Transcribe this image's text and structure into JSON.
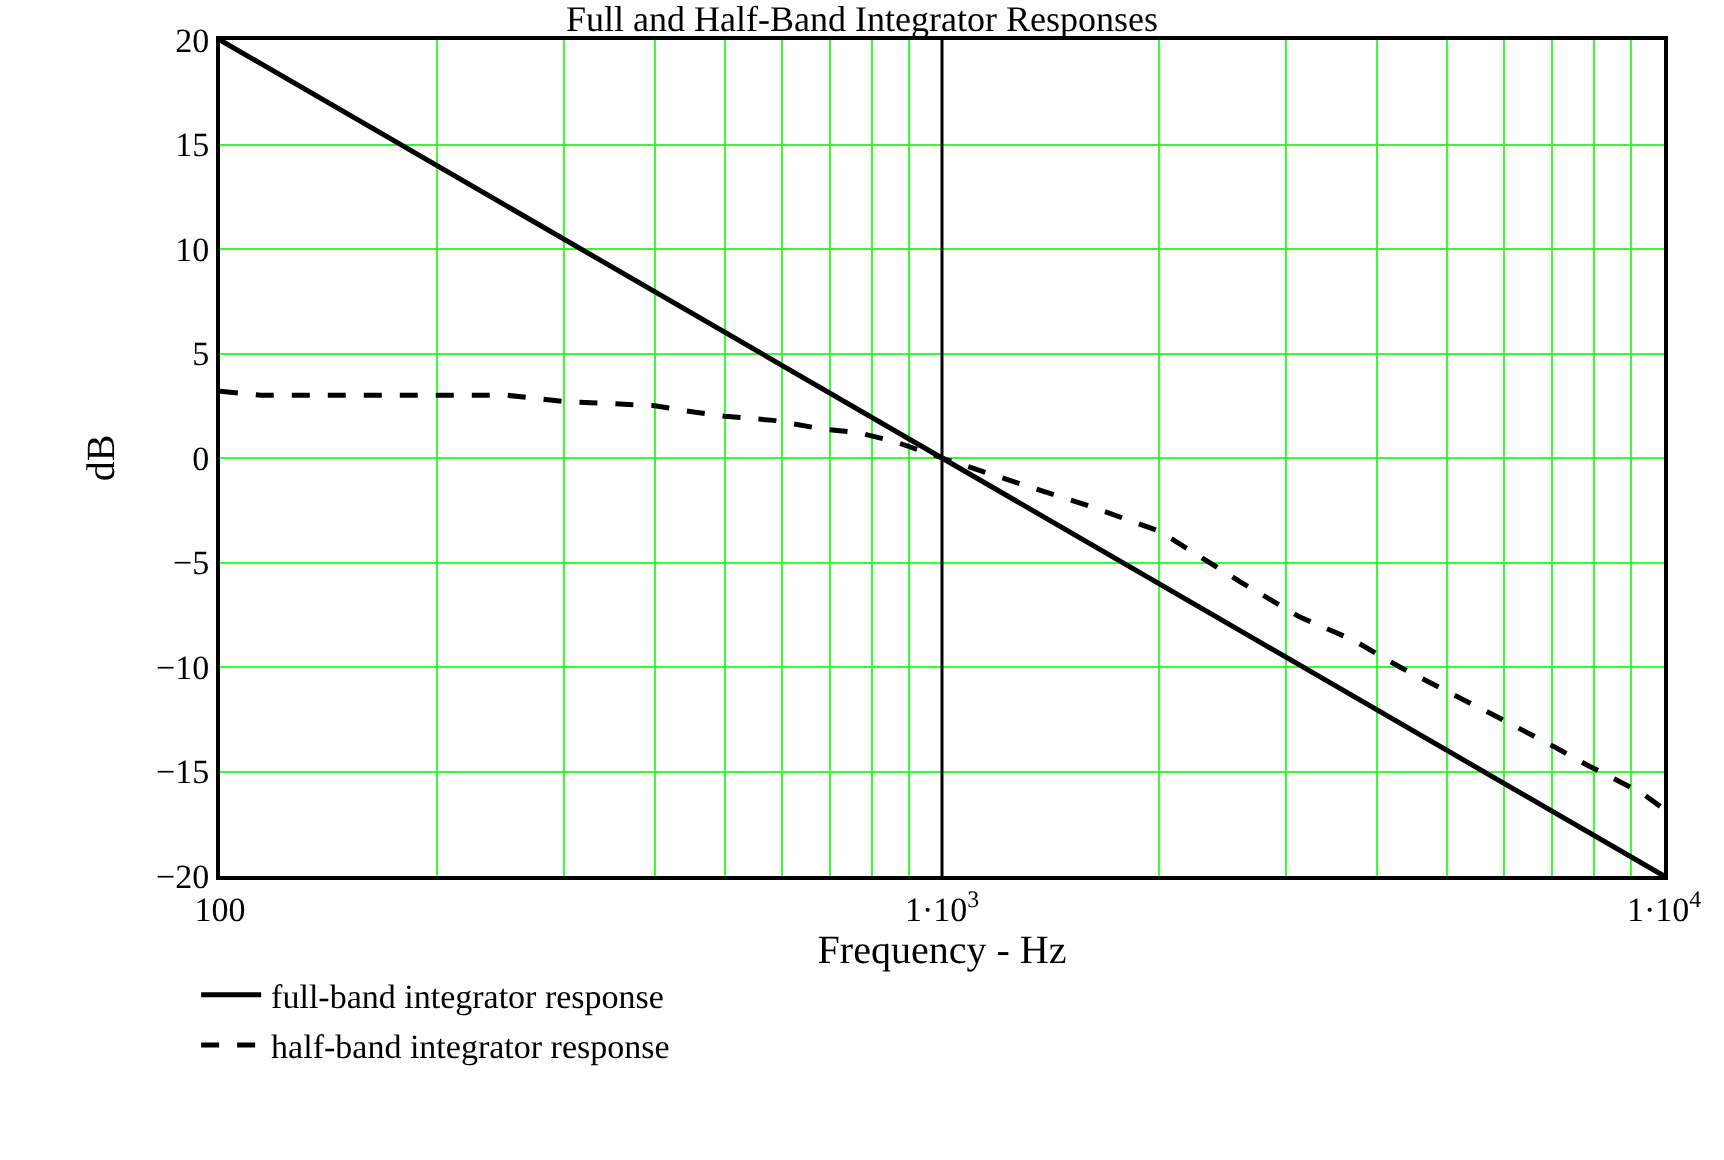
{
  "chart_data": {
    "type": "line",
    "title": "Full and Half-Band Integrator Responses",
    "xlabel": "Frequency - Hz",
    "ylabel": "dB",
    "log": "x",
    "xlim": [
      100,
      10000
    ],
    "xticks": [
      100,
      {
        "value": 1000,
        "label": "1·10$^{3}$"
      },
      {
        "value": 10000,
        "label": "1·10$^{4}$"
      }
    ],
    "ylim": [
      -20,
      20
    ],
    "yticks": [
      20,
      15,
      10,
      5,
      0,
      {
        "value": -5,
        "label": "−5"
      },
      {
        "value": -10,
        "label": "−10"
      },
      {
        "value": -15,
        "label": "−15"
      },
      {
        "value": -20,
        "label": "−20"
      }
    ],
    "grid": true,
    "legend": "bottom left",
    "ref_lines": [
      {
        "axis": "x",
        "value": 1000,
        "color": "#000000"
      }
    ],
    "series": [
      {
        "name": "full-band integrator response",
        "color": "#000000",
        "line_style": "solid",
        "x": [
          100,
          10000
        ],
        "values": [
          20,
          -20
        ]
      },
      {
        "name": "half-band integrator response",
        "color": "#000000",
        "line_style": "dashed",
        "x": [
          100,
          114,
          150,
          200,
          250,
          300,
          351,
          400,
          453,
          500,
          584,
          680,
          769,
          857,
          1000,
          1300,
          1600,
          2000,
          2582,
          3126,
          3707,
          4306,
          4897,
          5808,
          7031,
          7834,
          9290,
          10000
        ],
        "values": [
          3.2,
          3.0,
          3.0,
          3.0,
          3.0,
          2.7,
          2.6,
          2.5,
          2.2,
          2.0,
          1.8,
          1.4,
          1.2,
          0.8,
          0,
          -1.3,
          -2.3,
          -3.5,
          -5.9,
          -7.6,
          -8.7,
          -10.0,
          -11.0,
          -12.3,
          -13.8,
          -14.7,
          -16.0,
          -16.8
        ]
      }
    ]
  }
}
